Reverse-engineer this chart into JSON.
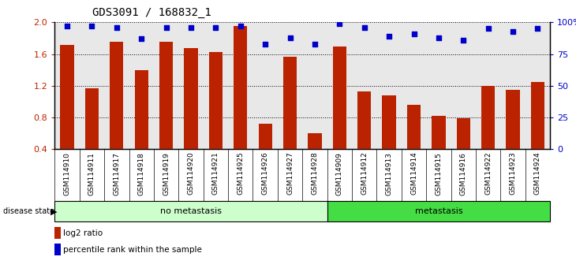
{
  "title": "GDS3091 / 168832_1",
  "samples": [
    "GSM114910",
    "GSM114911",
    "GSM114917",
    "GSM114918",
    "GSM114919",
    "GSM114920",
    "GSM114921",
    "GSM114925",
    "GSM114926",
    "GSM114927",
    "GSM114928",
    "GSM114909",
    "GSM114912",
    "GSM114913",
    "GSM114914",
    "GSM114915",
    "GSM114916",
    "GSM114922",
    "GSM114923",
    "GSM114924"
  ],
  "log2_ratio": [
    1.72,
    1.17,
    1.75,
    1.4,
    1.75,
    1.68,
    1.63,
    1.95,
    0.72,
    1.57,
    0.6,
    1.7,
    1.13,
    1.08,
    0.96,
    0.82,
    0.79,
    1.2,
    1.15,
    1.25
  ],
  "percentile_rank": [
    97,
    97,
    96,
    87,
    96,
    96,
    96,
    97,
    83,
    88,
    83,
    99,
    96,
    89,
    91,
    88,
    86,
    95,
    93,
    95
  ],
  "group_labels": [
    "no metastasis",
    "metastasis"
  ],
  "group_sizes": [
    11,
    9
  ],
  "group_colors": [
    "#ccffcc",
    "#44dd44"
  ],
  "bar_color": "#bb2200",
  "dot_color": "#0000cc",
  "ylim": [
    0.4,
    2.0
  ],
  "y_ticks_left": [
    0.4,
    0.8,
    1.2,
    1.6,
    2.0
  ],
  "y_ticks_right": [
    0,
    25,
    50,
    75,
    100
  ],
  "plot_bg_color": "#e8e8e8",
  "legend_items": [
    "log2 ratio",
    "percentile rank within the sample"
  ],
  "legend_colors": [
    "#bb2200",
    "#0000cc"
  ]
}
